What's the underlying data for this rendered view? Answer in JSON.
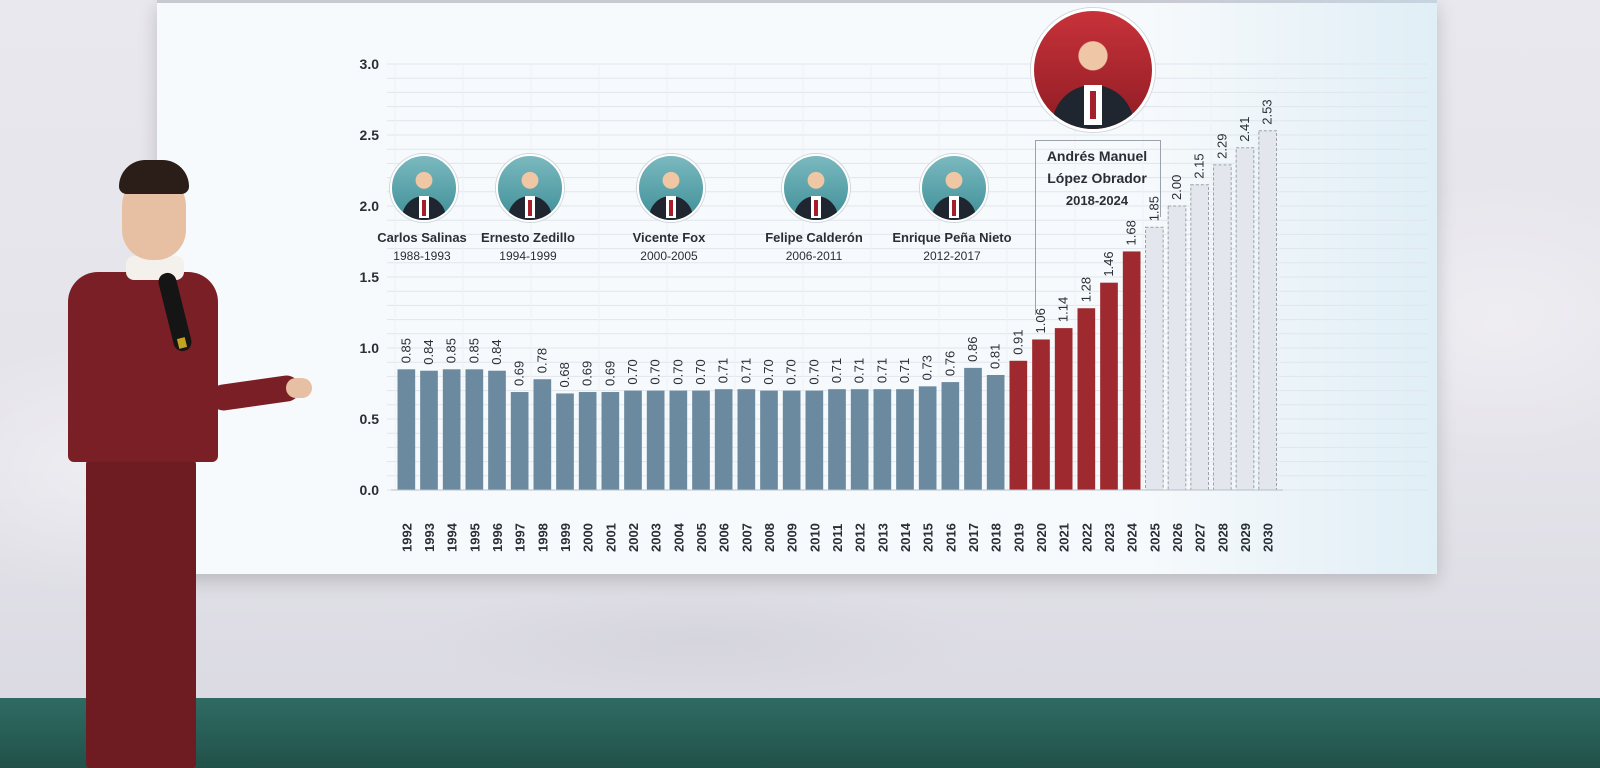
{
  "chart_data": {
    "type": "bar",
    "yticks": [
      "0.0",
      "0.5",
      "1.0",
      "1.5",
      "2.0",
      "2.5",
      "3.0"
    ],
    "ylim": [
      0,
      3.0
    ],
    "categories": [
      "1992",
      "1993",
      "1994",
      "1995",
      "1996",
      "1997",
      "1998",
      "1999",
      "2000",
      "2001",
      "2002",
      "2003",
      "2004",
      "2005",
      "2006",
      "2007",
      "2008",
      "2009",
      "2010",
      "2011",
      "2012",
      "2013",
      "2014",
      "2015",
      "2016",
      "2017",
      "2018",
      "2019",
      "2020",
      "2021",
      "2022",
      "2023",
      "2024",
      "2025",
      "2026",
      "2027",
      "2028",
      "2029",
      "2030"
    ],
    "values": [
      0.85,
      0.84,
      0.85,
      0.85,
      0.84,
      0.69,
      0.78,
      0.68,
      0.69,
      0.69,
      0.7,
      0.7,
      0.7,
      0.7,
      0.71,
      0.71,
      0.7,
      0.7,
      0.7,
      0.71,
      0.71,
      0.71,
      0.71,
      0.73,
      0.76,
      0.86,
      0.81,
      0.91,
      1.06,
      1.14,
      1.28,
      1.46,
      1.68,
      1.85,
      2.0,
      2.15,
      2.29,
      2.41,
      2.53
    ],
    "value_labels": [
      "0.85",
      "0.84",
      "0.85",
      "0.85",
      "0.84",
      "0.69",
      "0.78",
      "0.68",
      "0.69",
      "0.69",
      "0.70",
      "0.70",
      "0.70",
      "0.70",
      "0.71",
      "0.71",
      "0.70",
      "0.70",
      "0.70",
      "0.71",
      "0.71",
      "0.71",
      "0.71",
      "0.73",
      "0.76",
      "0.86",
      "0.81",
      "0.91",
      "1.06",
      "1.14",
      "1.28",
      "1.46",
      "1.68",
      "1.85",
      "2.00",
      "2.15",
      "2.29",
      "2.41",
      "2.53"
    ],
    "bar_style": [
      "past",
      "past",
      "past",
      "past",
      "past",
      "past",
      "past",
      "past",
      "past",
      "past",
      "past",
      "past",
      "past",
      "past",
      "past",
      "past",
      "past",
      "past",
      "past",
      "past",
      "past",
      "past",
      "past",
      "past",
      "past",
      "past",
      "past",
      "current",
      "current",
      "current",
      "current",
      "current",
      "current",
      "projected",
      "projected",
      "projected",
      "projected",
      "projected",
      "projected"
    ],
    "colors": {
      "past": "#6b8aa0",
      "current": "#9e2a2f",
      "projected": "#e3e6ec",
      "projected_border": "#9aa1aa",
      "grid": "#dfe6ec",
      "text": "#2a2f36"
    },
    "presidents": [
      {
        "name": "Carlos Salinas",
        "years": "1988-1993"
      },
      {
        "name": "Ernesto Zedillo",
        "years": "1994-1999"
      },
      {
        "name": "Vicente Fox",
        "years": "2000-2005"
      },
      {
        "name": "Felipe Calderón",
        "years": "2006-2011"
      },
      {
        "name": "Enrique Peña Nieto",
        "years": "2012-2017"
      }
    ],
    "highlight_president": {
      "name_line1": "Andrés Manuel",
      "name_line2": "López Obrador",
      "years": "2018-2024"
    },
    "grid": true,
    "legend": "none"
  }
}
